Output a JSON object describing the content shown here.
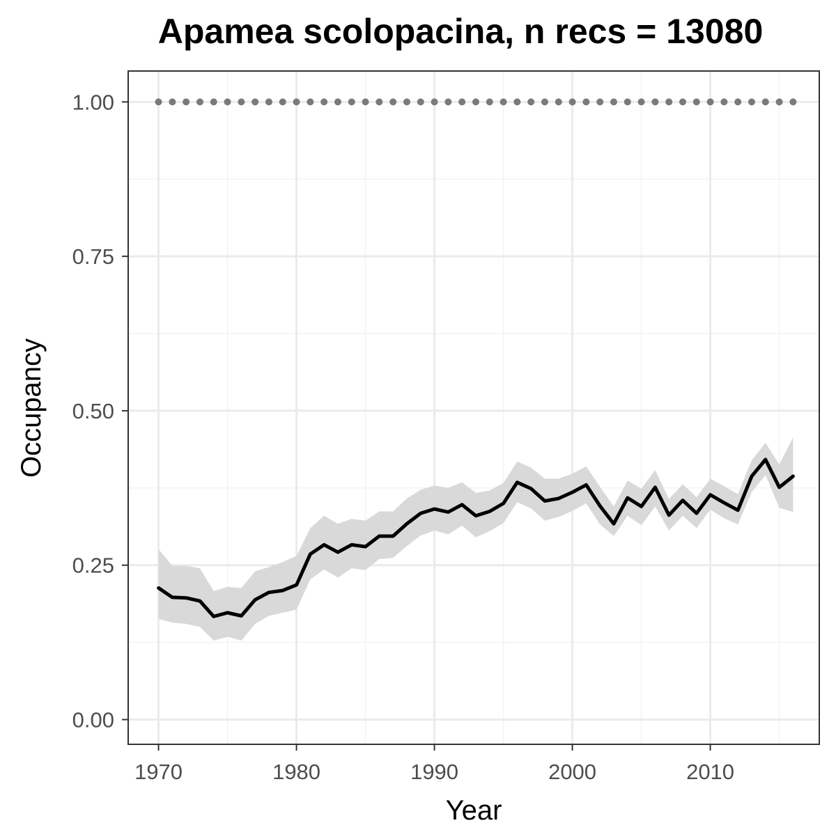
{
  "chart_data": {
    "type": "line",
    "title": "Apamea scolopacina, n recs = 13080",
    "xlabel": "Year",
    "ylabel": "Occupancy",
    "xlim": [
      1967.8,
      2017.9
    ],
    "ylim": [
      -0.04,
      1.05
    ],
    "x_ticks": [
      1970,
      1980,
      1990,
      2000,
      2010
    ],
    "x_minor_ticks": [
      1975,
      1985,
      1995,
      2005,
      2015
    ],
    "y_ticks": [
      0,
      0.25,
      0.5,
      0.75,
      1
    ],
    "y_tick_labels": [
      "0.00",
      "0.25",
      "0.50",
      "0.75",
      "1.00"
    ],
    "y_minor_ticks": [
      0.125,
      0.375,
      0.625,
      0.875
    ],
    "grid": true,
    "legend": "none",
    "x": [
      1970,
      1971,
      1972,
      1973,
      1974,
      1975,
      1976,
      1977,
      1978,
      1979,
      1980,
      1981,
      1982,
      1983,
      1984,
      1985,
      1986,
      1987,
      1988,
      1989,
      1990,
      1991,
      1992,
      1993,
      1994,
      1995,
      1996,
      1997,
      1998,
      1999,
      2000,
      2001,
      2002,
      2003,
      2004,
      2005,
      2006,
      2007,
      2008,
      2009,
      2010,
      2011,
      2012,
      2013,
      2014,
      2015,
      2016
    ],
    "series": [
      {
        "values": [
          0.213,
          0.198,
          0.197,
          0.192,
          0.167,
          0.173,
          0.168,
          0.194,
          0.206,
          0.209,
          0.218,
          0.268,
          0.283,
          0.271,
          0.283,
          0.28,
          0.297,
          0.297,
          0.317,
          0.334,
          0.341,
          0.336,
          0.348,
          0.33,
          0.337,
          0.35,
          0.384,
          0.374,
          0.354,
          0.358,
          0.368,
          0.38,
          0.346,
          0.317,
          0.359,
          0.345,
          0.376,
          0.331,
          0.355,
          0.334,
          0.364,
          0.351,
          0.339,
          0.394,
          0.421,
          0.376,
          0.394
        ],
        "lower": [
          0.163,
          0.157,
          0.155,
          0.15,
          0.128,
          0.134,
          0.128,
          0.155,
          0.168,
          0.173,
          0.178,
          0.227,
          0.243,
          0.23,
          0.245,
          0.242,
          0.26,
          0.262,
          0.281,
          0.298,
          0.306,
          0.3,
          0.314,
          0.295,
          0.305,
          0.318,
          0.352,
          0.342,
          0.322,
          0.328,
          0.338,
          0.35,
          0.316,
          0.297,
          0.33,
          0.315,
          0.345,
          0.306,
          0.33,
          0.31,
          0.34,
          0.326,
          0.316,
          0.368,
          0.396,
          0.343,
          0.336
        ],
        "upper": [
          0.276,
          0.249,
          0.249,
          0.245,
          0.208,
          0.215,
          0.213,
          0.24,
          0.247,
          0.255,
          0.265,
          0.31,
          0.33,
          0.317,
          0.325,
          0.322,
          0.337,
          0.337,
          0.358,
          0.372,
          0.379,
          0.375,
          0.384,
          0.367,
          0.371,
          0.383,
          0.418,
          0.408,
          0.39,
          0.39,
          0.398,
          0.41,
          0.377,
          0.345,
          0.387,
          0.374,
          0.404,
          0.357,
          0.381,
          0.36,
          0.39,
          0.378,
          0.365,
          0.42,
          0.448,
          0.413,
          0.457
        ]
      },
      {
        "values": [
          1,
          1,
          1,
          1,
          1,
          1,
          1,
          1,
          1,
          1,
          1,
          1,
          1,
          1,
          1,
          1,
          1,
          1,
          1,
          1,
          1,
          1,
          1,
          1,
          1,
          1,
          1,
          1,
          1,
          1,
          1,
          1,
          1,
          1,
          1,
          1,
          1,
          1,
          1,
          1,
          1,
          1,
          1,
          1,
          1,
          1,
          1
        ]
      }
    ]
  },
  "colors": {
    "main_line": "#000000",
    "ribbon": "#d9d9d9",
    "points": "#7a7a7a",
    "grid_major": "#ebebeb",
    "grid_minor": "#f3f3f3",
    "panel_border": "#333333",
    "tick_label": "#4d4d4d"
  }
}
